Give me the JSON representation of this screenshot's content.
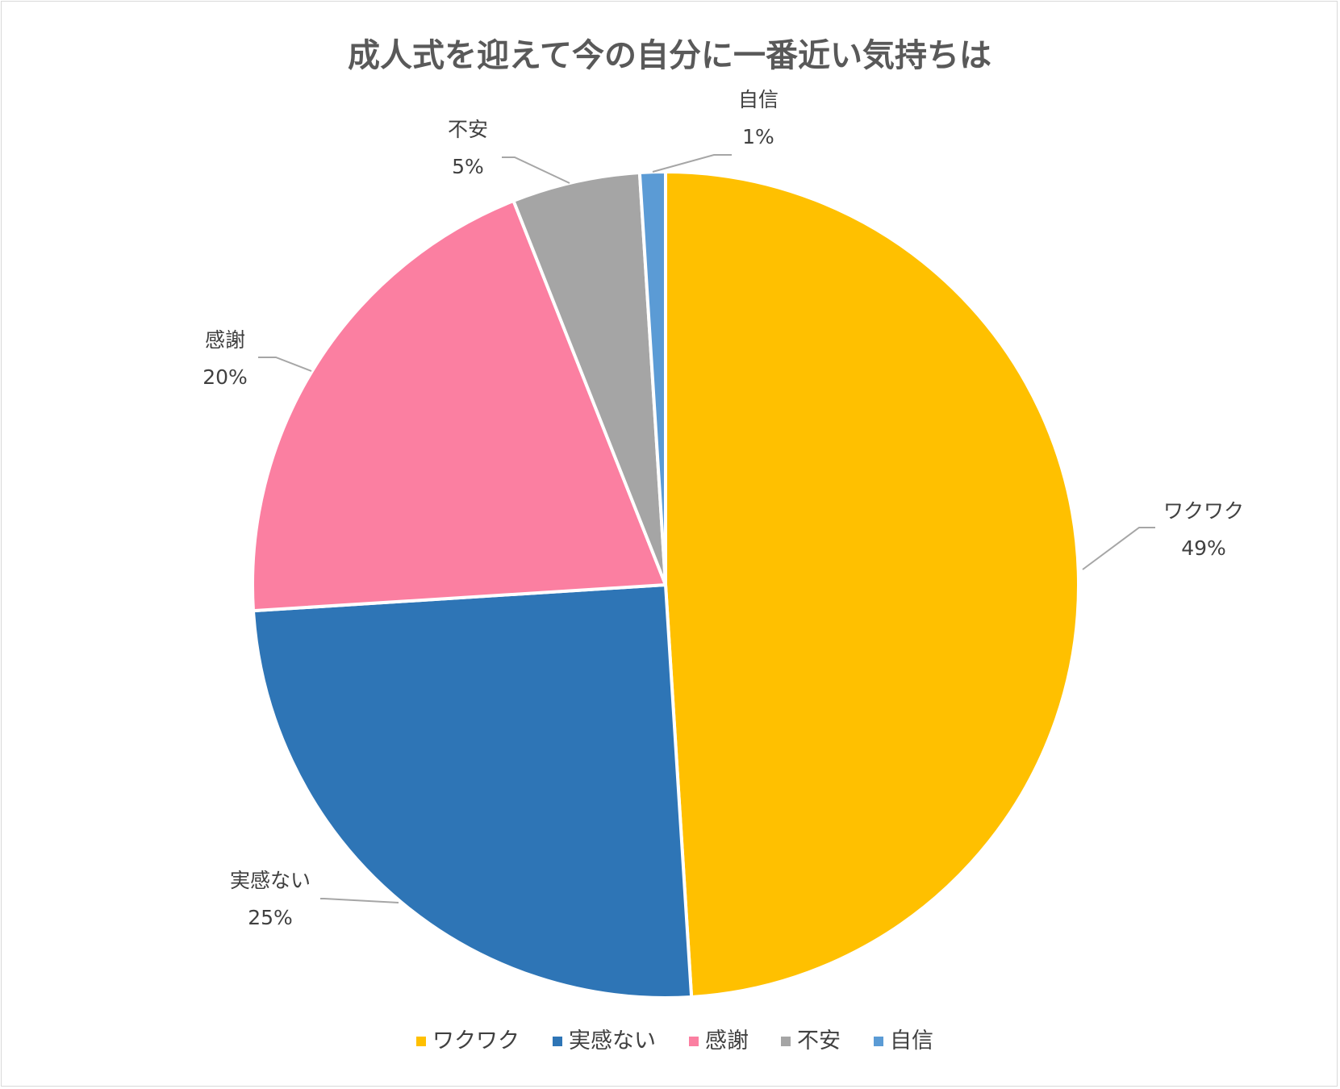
{
  "chart_data": {
    "type": "pie",
    "title": "成人式を迎えて今の自分に一番近い気持ちは",
    "categories": [
      "ワクワク",
      "実感ない",
      "感謝",
      "不安",
      "自信"
    ],
    "values": [
      49,
      25,
      20,
      5,
      1
    ],
    "value_labels": [
      "49%",
      "25%",
      "20%",
      "5%",
      "1%"
    ],
    "colors": [
      "#FFC000",
      "#2E75B6",
      "#FB7FA1",
      "#A5A5A5",
      "#5B9BD5"
    ],
    "start_angle_deg": 0,
    "direction": "clockwise",
    "legend_position": "bottom"
  }
}
